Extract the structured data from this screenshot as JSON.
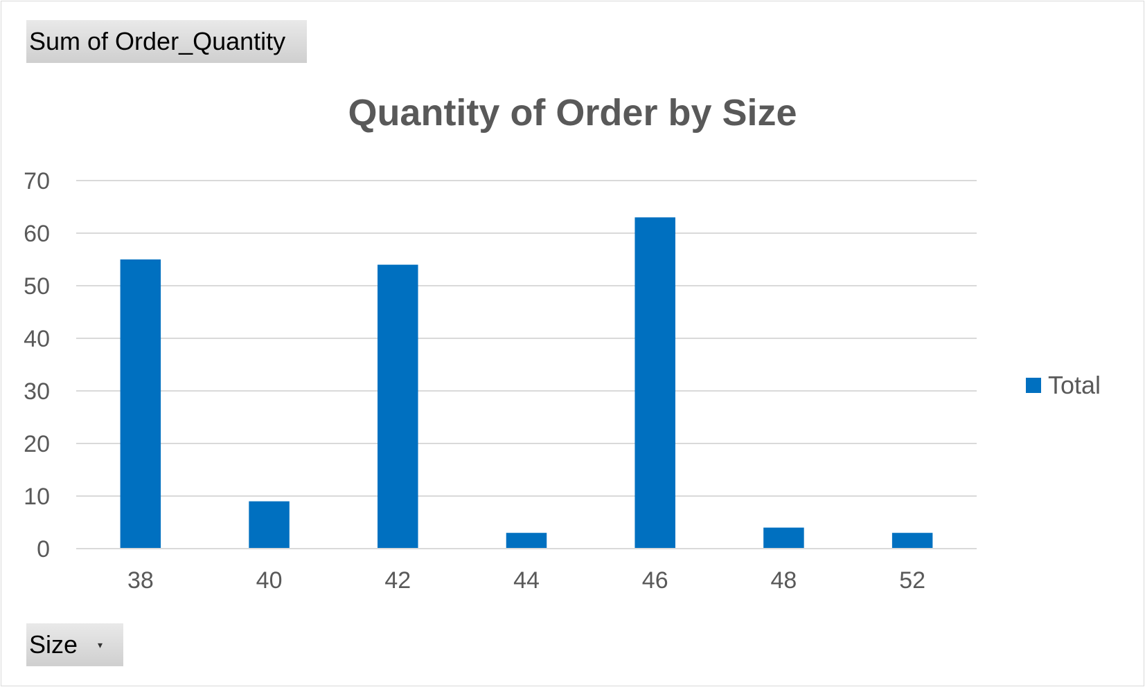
{
  "pivot": {
    "value_field_label": "Sum of Order_Quantity",
    "axis_field_label": "Size"
  },
  "chart_data": {
    "type": "bar",
    "title": "Quantity of Order by Size",
    "xlabel": "",
    "ylabel": "",
    "categories": [
      "38",
      "40",
      "42",
      "44",
      "46",
      "48",
      "52"
    ],
    "series": [
      {
        "name": "Total",
        "values": [
          55,
          9,
          54,
          3,
          63,
          4,
          3
        ],
        "color": "#0070c0"
      }
    ],
    "ylim": [
      0,
      70
    ],
    "yticks": [
      0,
      10,
      20,
      30,
      40,
      50,
      60,
      70
    ],
    "grid": true,
    "legend_position": "right"
  }
}
